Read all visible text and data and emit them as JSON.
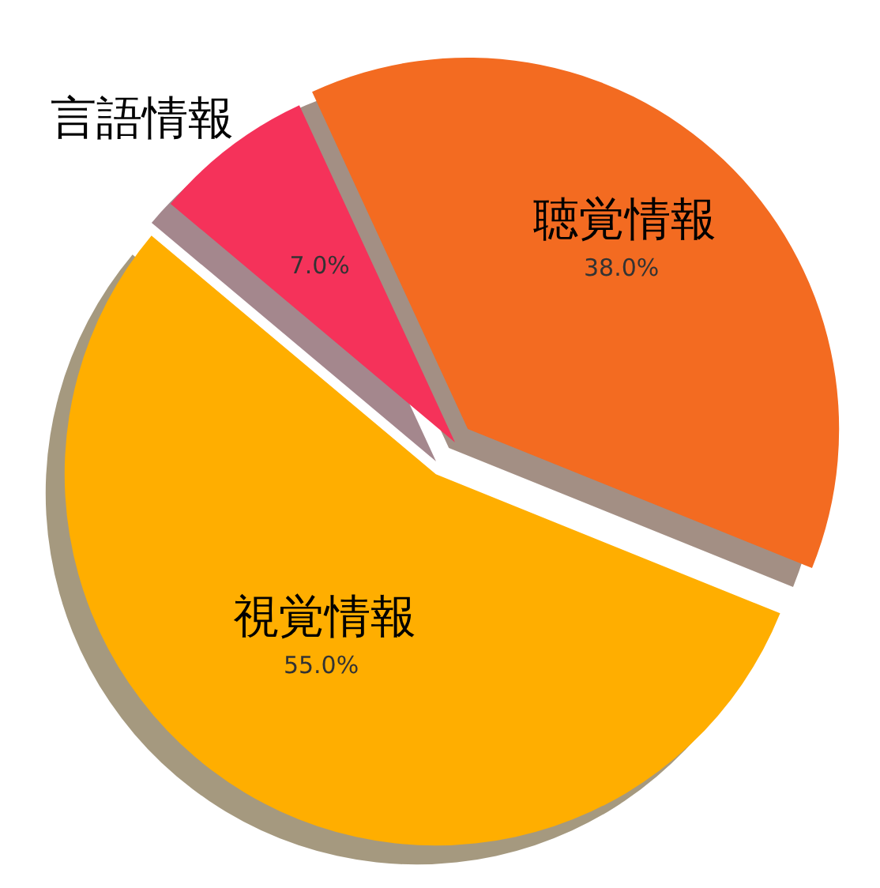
{
  "chart_data": {
    "type": "pie",
    "categories": [
      "視覚情報",
      "聴覚情報",
      "言語情報"
    ],
    "values": [
      55,
      38,
      7
    ],
    "colors": [
      "#ffae00",
      "#f36b21",
      "#f5325a"
    ],
    "value_labels": [
      "55.0%",
      "38.0%",
      "7.0%"
    ]
  }
}
